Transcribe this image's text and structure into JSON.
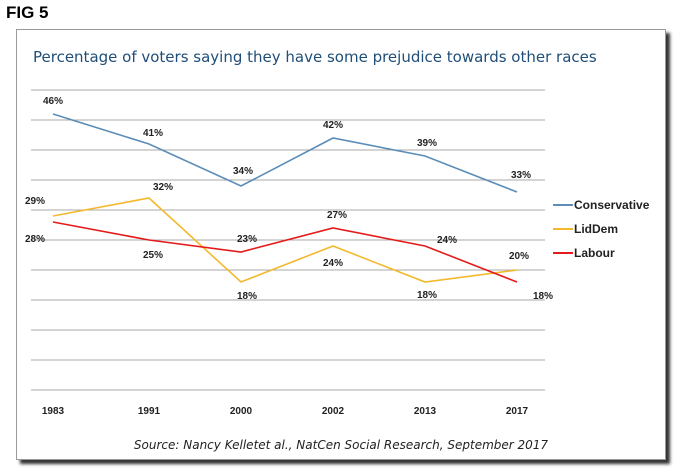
{
  "figure_label": "FIG 5",
  "source": "Source: Nancy Kelletet al., NatCen Social Research, September 2017",
  "chart_data": {
    "type": "line",
    "title": "Percentage of voters saying they have some prejudice towards other races",
    "categories": [
      "1983",
      "1991",
      "2000",
      "2002",
      "2013",
      "2017"
    ],
    "ylim": [
      0,
      50
    ],
    "grid": true,
    "legend": "right",
    "series": [
      {
        "name": "Conservative",
        "color": "#5b8db8",
        "values": [
          46,
          41,
          34,
          42,
          39,
          33
        ],
        "labels": [
          "46%",
          "41%",
          "34%",
          "42%",
          "39%",
          "33%"
        ]
      },
      {
        "name": "LidDem",
        "color": "#f3b92c",
        "values": [
          29,
          32,
          18,
          24,
          18,
          20
        ],
        "labels": [
          "29%",
          "32%",
          "18%",
          "24%",
          "18%",
          "20%"
        ]
      },
      {
        "name": "Labour",
        "color": "#e41b1b",
        "values": [
          28,
          25,
          23,
          27,
          24,
          18
        ],
        "labels": [
          "28%",
          "25%",
          "23%",
          "27%",
          "24%",
          "18%"
        ]
      }
    ]
  }
}
